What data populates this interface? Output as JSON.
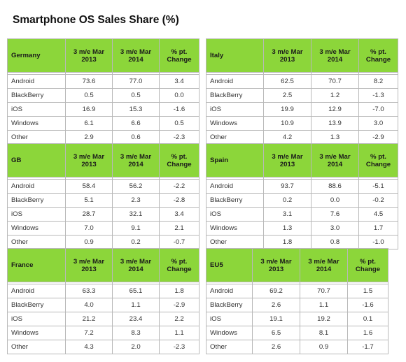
{
  "title": "Smartphone OS Sales Share (%)",
  "chart_data": {
    "type": "table",
    "title": "Smartphone OS Sales Share (%)",
    "columns": [
      "3 m/e Mar 2013",
      "3 m/e Mar 2014",
      "% pt. Change"
    ],
    "panels": [
      {
        "name": "Germany",
        "rows": [
          {
            "os": "Android",
            "v2013": "73.6",
            "v2014": "77.0",
            "change": "3.4"
          },
          {
            "os": "BlackBerry",
            "v2013": "0.5",
            "v2014": "0.5",
            "change": "0.0"
          },
          {
            "os": "iOS",
            "v2013": "16.9",
            "v2014": "15.3",
            "change": "-1.6"
          },
          {
            "os": "Windows",
            "v2013": "6.1",
            "v2014": "6.6",
            "change": "0.5"
          },
          {
            "os": "Other",
            "v2013": "2.9",
            "v2014": "0.6",
            "change": "-2.3"
          }
        ]
      },
      {
        "name": "Italy",
        "rows": [
          {
            "os": "Android",
            "v2013": "62.5",
            "v2014": "70.7",
            "change": "8.2"
          },
          {
            "os": "BlackBerry",
            "v2013": "2.5",
            "v2014": "1.2",
            "change": "-1.3"
          },
          {
            "os": "iOS",
            "v2013": "19.9",
            "v2014": "12.9",
            "change": "-7.0"
          },
          {
            "os": "Windows",
            "v2013": "10.9",
            "v2014": "13.9",
            "change": "3.0"
          },
          {
            "os": "Other",
            "v2013": "4.2",
            "v2014": "1.3",
            "change": "-2.9"
          }
        ]
      },
      {
        "name": "GB",
        "rows": [
          {
            "os": "Android",
            "v2013": "58.4",
            "v2014": "56.2",
            "change": "-2.2"
          },
          {
            "os": "BlackBerry",
            "v2013": "5.1",
            "v2014": "2.3",
            "change": "-2.8"
          },
          {
            "os": "iOS",
            "v2013": "28.7",
            "v2014": "32.1",
            "change": "3.4"
          },
          {
            "os": "Windows",
            "v2013": "7.0",
            "v2014": "9.1",
            "change": "2.1"
          },
          {
            "os": "Other",
            "v2013": "0.9",
            "v2014": "0.2",
            "change": "-0.7"
          }
        ]
      },
      {
        "name": "Spain",
        "rows": [
          {
            "os": "Android",
            "v2013": "93.7",
            "v2014": "88.6",
            "change": "-5.1"
          },
          {
            "os": "BlackBerry",
            "v2013": "0.2",
            "v2014": "0.0",
            "change": "-0.2"
          },
          {
            "os": "iOS",
            "v2013": "3.1",
            "v2014": "7.6",
            "change": "4.5"
          },
          {
            "os": "Windows",
            "v2013": "1.3",
            "v2014": "3.0",
            "change": "1.7"
          },
          {
            "os": "Other",
            "v2013": "1.8",
            "v2014": "0.8",
            "change": "-1.0"
          }
        ]
      },
      {
        "name": "France",
        "rows": [
          {
            "os": "Android",
            "v2013": "63.3",
            "v2014": "65.1",
            "change": "1.8"
          },
          {
            "os": "BlackBerry",
            "v2013": "4.0",
            "v2014": "1.1",
            "change": "-2.9"
          },
          {
            "os": "iOS",
            "v2013": "21.2",
            "v2014": "23.4",
            "change": "2.2"
          },
          {
            "os": "Windows",
            "v2013": "7.2",
            "v2014": "8.3",
            "change": "1.1"
          },
          {
            "os": "Other",
            "v2013": "4.3",
            "v2014": "2.0",
            "change": "-2.3"
          }
        ]
      },
      {
        "name": "EU5",
        "rows": [
          {
            "os": "Android",
            "v2013": "69.2",
            "v2014": "70.7",
            "change": "1.5"
          },
          {
            "os": "BlackBerry",
            "v2013": "2.6",
            "v2014": "1.1",
            "change": "-1.6"
          },
          {
            "os": "iOS",
            "v2013": "19.1",
            "v2014": "19.2",
            "change": "0.1"
          },
          {
            "os": "Windows",
            "v2013": "6.5",
            "v2014": "8.1",
            "change": "1.6"
          },
          {
            "os": "Other",
            "v2013": "2.6",
            "v2014": "0.9",
            "change": "-1.7"
          }
        ]
      }
    ]
  }
}
